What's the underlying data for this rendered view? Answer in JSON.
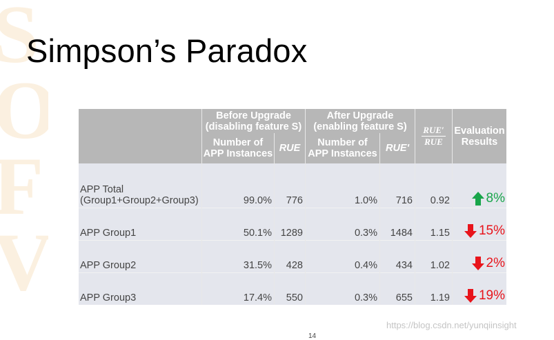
{
  "slide": {
    "title": "Simpson’s Paradox",
    "page_number": "14",
    "watermark_credit": "https://blog.csdn.net/yunqiinsight"
  },
  "table": {
    "group_headers": {
      "before": "Before Upgrade\n(disabling feature S)",
      "after": "After Upgrade\n(enabling feature S)",
      "ratio_top": "RUE′",
      "ratio_bottom": "RUE",
      "evaluation": "Evaluation\nResults"
    },
    "sub_headers": {
      "before_instances": "Number of\nAPP Instances",
      "before_rue": "RUE",
      "after_instances": "Number of\nAPP Instances",
      "after_rue": "RUE'"
    },
    "rows": [
      {
        "label": "APP Total\n(Group1+Group2+Group3)",
        "before_pct": "99.0%",
        "before_rue": "776",
        "after_pct": "1.0%",
        "after_rue": "716",
        "ratio": "0.92",
        "direction": "up",
        "result": "8%"
      },
      {
        "label": "APP Group1",
        "before_pct": "50.1%",
        "before_rue": "1289",
        "after_pct": "0.3%",
        "after_rue": "1484",
        "ratio": "1.15",
        "direction": "down",
        "result": "15%"
      },
      {
        "label": "APP Group2",
        "before_pct": "31.5%",
        "before_rue": "428",
        "after_pct": "0.4%",
        "after_rue": "434",
        "ratio": "1.02",
        "direction": "down",
        "result": "2%"
      },
      {
        "label": "APP Group3",
        "before_pct": "17.4%",
        "before_rue": "550",
        "after_pct": "0.3%",
        "after_rue": "655",
        "ratio": "1.19",
        "direction": "down",
        "result": "19%"
      }
    ]
  },
  "colors": {
    "header_bg": "#b7b7b7",
    "body_bg": "#e4e6ed",
    "up": "#18a54a",
    "down": "#e8141b"
  },
  "icons": {
    "up": "up-arrow-icon",
    "down": "down-arrow-icon"
  }
}
